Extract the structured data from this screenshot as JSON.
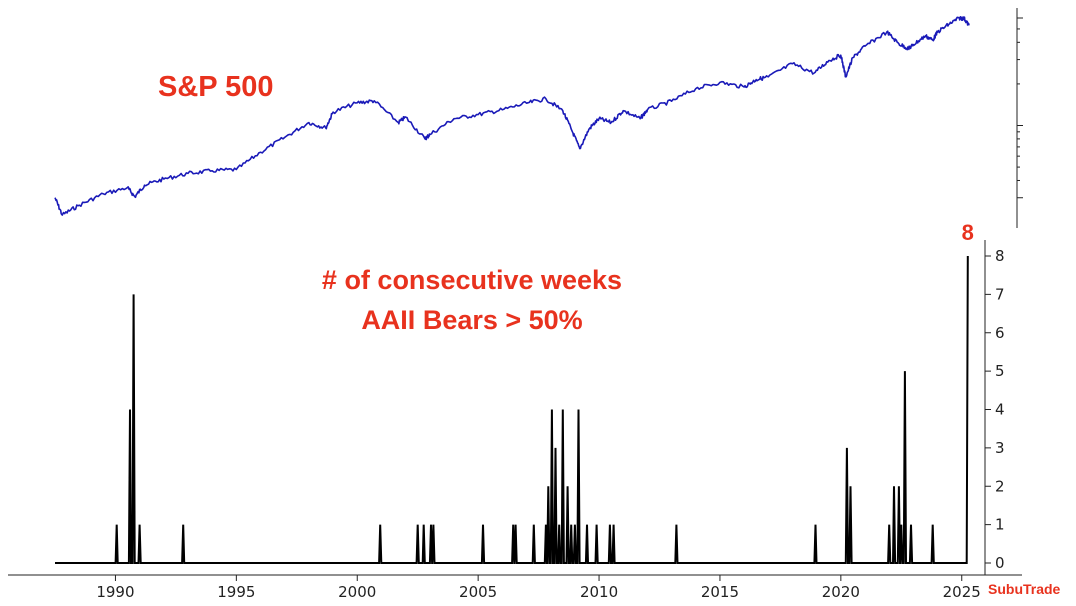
{
  "chart_data": [
    {
      "type": "line",
      "title": "S&P 500",
      "y_scale": "log",
      "color": "#1a1ab8",
      "series": [
        {
          "values": [
            {
              "x": 1987.5,
              "y": 300
            },
            {
              "x": 1987.8,
              "y": 225
            },
            {
              "x": 1988.5,
              "y": 265
            },
            {
              "x": 1989.5,
              "y": 320
            },
            {
              "x": 1990.5,
              "y": 355
            },
            {
              "x": 1990.8,
              "y": 305
            },
            {
              "x": 1991.2,
              "y": 370
            },
            {
              "x": 1992.0,
              "y": 410
            },
            {
              "x": 1993.0,
              "y": 450
            },
            {
              "x": 1994.0,
              "y": 470
            },
            {
              "x": 1995.0,
              "y": 480
            },
            {
              "x": 1996.0,
              "y": 640
            },
            {
              "x": 1997.0,
              "y": 820
            },
            {
              "x": 1998.0,
              "y": 1050
            },
            {
              "x": 1998.7,
              "y": 960
            },
            {
              "x": 1999.0,
              "y": 1250
            },
            {
              "x": 2000.0,
              "y": 1460
            },
            {
              "x": 2000.7,
              "y": 1510
            },
            {
              "x": 2001.7,
              "y": 1050
            },
            {
              "x": 2002.0,
              "y": 1150
            },
            {
              "x": 2002.8,
              "y": 800
            },
            {
              "x": 2003.0,
              "y": 860
            },
            {
              "x": 2004.0,
              "y": 1120
            },
            {
              "x": 2005.0,
              "y": 1200
            },
            {
              "x": 2006.0,
              "y": 1300
            },
            {
              "x": 2007.0,
              "y": 1450
            },
            {
              "x": 2007.8,
              "y": 1560
            },
            {
              "x": 2008.5,
              "y": 1280
            },
            {
              "x": 2008.9,
              "y": 900
            },
            {
              "x": 2009.2,
              "y": 680
            },
            {
              "x": 2009.6,
              "y": 950
            },
            {
              "x": 2010.0,
              "y": 1120
            },
            {
              "x": 2010.5,
              "y": 1050
            },
            {
              "x": 2011.0,
              "y": 1280
            },
            {
              "x": 2011.7,
              "y": 1120
            },
            {
              "x": 2012.0,
              "y": 1300
            },
            {
              "x": 2013.0,
              "y": 1500
            },
            {
              "x": 2014.0,
              "y": 1850
            },
            {
              "x": 2015.0,
              "y": 2050
            },
            {
              "x": 2016.0,
              "y": 1900
            },
            {
              "x": 2016.5,
              "y": 2150
            },
            {
              "x": 2017.0,
              "y": 2250
            },
            {
              "x": 2018.0,
              "y": 2800
            },
            {
              "x": 2018.9,
              "y": 2400
            },
            {
              "x": 2019.5,
              "y": 2950
            },
            {
              "x": 2020.0,
              "y": 3230
            },
            {
              "x": 2020.2,
              "y": 2250
            },
            {
              "x": 2020.5,
              "y": 3100
            },
            {
              "x": 2021.0,
              "y": 3750
            },
            {
              "x": 2021.9,
              "y": 4750
            },
            {
              "x": 2022.4,
              "y": 3900
            },
            {
              "x": 2022.8,
              "y": 3600
            },
            {
              "x": 2023.0,
              "y": 3850
            },
            {
              "x": 2023.5,
              "y": 4450
            },
            {
              "x": 2023.8,
              "y": 4150
            },
            {
              "x": 2024.0,
              "y": 4750
            },
            {
              "x": 2024.5,
              "y": 5450
            },
            {
              "x": 2024.9,
              "y": 6000
            },
            {
              "x": 2025.1,
              "y": 5950
            },
            {
              "x": 2025.3,
              "y": 5300
            }
          ]
        }
      ]
    },
    {
      "type": "line",
      "title": "# of consecutive weeks\nAAII Bears > 50%",
      "color": "#000000",
      "xlim": [
        1987.5,
        2025.3
      ],
      "ylim": [
        0,
        8
      ],
      "x_ticks": [
        1990,
        1995,
        2000,
        2005,
        2010,
        2015,
        2020,
        2025
      ],
      "y_ticks": [
        0,
        1,
        2,
        3,
        4,
        5,
        6,
        7,
        8
      ],
      "annotation": "8",
      "series": [
        {
          "spikes": [
            {
              "x": 1990.05,
              "y": 1
            },
            {
              "x": 1990.6,
              "y": 4
            },
            {
              "x": 1990.75,
              "y": 7
            },
            {
              "x": 1991.0,
              "y": 1
            },
            {
              "x": 1992.8,
              "y": 1
            },
            {
              "x": 2000.95,
              "y": 1
            },
            {
              "x": 2002.5,
              "y": 1
            },
            {
              "x": 2002.75,
              "y": 1
            },
            {
              "x": 2003.05,
              "y": 1
            },
            {
              "x": 2003.15,
              "y": 1
            },
            {
              "x": 2005.2,
              "y": 1
            },
            {
              "x": 2006.45,
              "y": 1
            },
            {
              "x": 2006.55,
              "y": 1
            },
            {
              "x": 2007.3,
              "y": 1
            },
            {
              "x": 2007.8,
              "y": 1
            },
            {
              "x": 2007.9,
              "y": 2
            },
            {
              "x": 2008.05,
              "y": 4
            },
            {
              "x": 2008.2,
              "y": 3
            },
            {
              "x": 2008.35,
              "y": 1
            },
            {
              "x": 2008.5,
              "y": 4
            },
            {
              "x": 2008.7,
              "y": 2
            },
            {
              "x": 2008.85,
              "y": 1
            },
            {
              "x": 2009.0,
              "y": 1
            },
            {
              "x": 2009.15,
              "y": 4
            },
            {
              "x": 2009.5,
              "y": 1
            },
            {
              "x": 2009.9,
              "y": 1
            },
            {
              "x": 2010.45,
              "y": 1
            },
            {
              "x": 2010.6,
              "y": 1
            },
            {
              "x": 2013.2,
              "y": 1
            },
            {
              "x": 2018.95,
              "y": 1
            },
            {
              "x": 2020.25,
              "y": 3
            },
            {
              "x": 2020.4,
              "y": 2
            },
            {
              "x": 2022.0,
              "y": 1
            },
            {
              "x": 2022.2,
              "y": 2
            },
            {
              "x": 2022.4,
              "y": 2
            },
            {
              "x": 2022.5,
              "y": 1
            },
            {
              "x": 2022.65,
              "y": 5
            },
            {
              "x": 2022.9,
              "y": 1
            },
            {
              "x": 2023.8,
              "y": 1
            },
            {
              "x": 2025.25,
              "y": 8
            }
          ]
        }
      ]
    }
  ],
  "watermark": "SubuTrade"
}
